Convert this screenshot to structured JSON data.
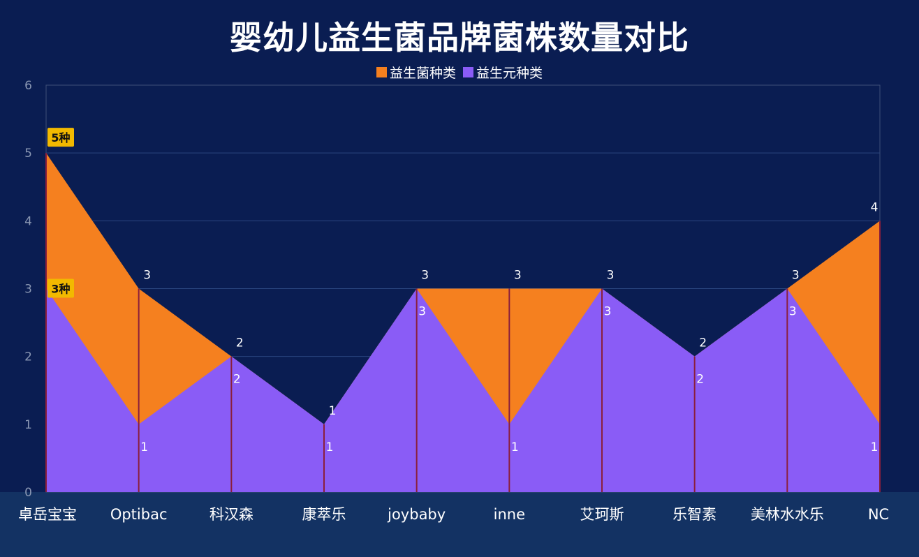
{
  "title": "婴幼儿益生菌品牌菌株数量对比",
  "legend": {
    "items": [
      {
        "label": "益生菌种类",
        "color": "#f5801f"
      },
      {
        "label": "益生元种类",
        "color": "#8a5cf6"
      }
    ]
  },
  "chart_data": {
    "type": "area",
    "categories": [
      "卓岳宝宝",
      "Optibac",
      "科汉森",
      "康萃乐",
      "joybaby",
      "inne",
      "艾珂斯",
      "乐智素",
      "美林水水乐",
      "NC"
    ],
    "series": [
      {
        "name": "益生菌种类",
        "color": "#f5801f",
        "values": [
          5,
          3,
          2,
          1,
          3,
          3,
          3,
          2,
          3,
          4
        ]
      },
      {
        "name": "益生元种类",
        "color": "#8a5cf6",
        "values": [
          3,
          1,
          2,
          1,
          3,
          1,
          3,
          2,
          3,
          1
        ]
      }
    ],
    "ylim": [
      0,
      6
    ],
    "yticks": [
      "0",
      "1",
      "2",
      "3",
      "4",
      "5",
      "6"
    ],
    "grid": true,
    "legend_position": "top",
    "annotations": [
      {
        "text": "5种",
        "series": 0,
        "index": 0
      },
      {
        "text": "3种",
        "series": 1,
        "index": 0
      }
    ]
  }
}
